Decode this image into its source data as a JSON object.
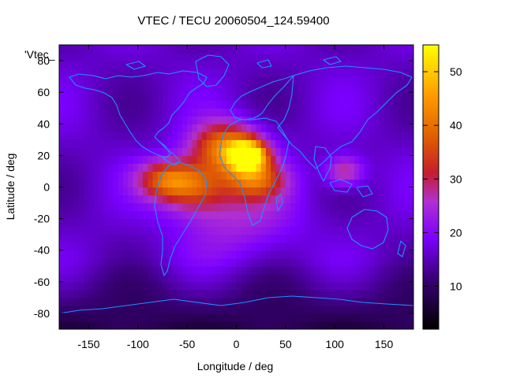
{
  "chart_data": {
    "type": "heatmap",
    "title": "VTEC / TECU 20060504_124.59400",
    "xlabel": "Longitude / deg",
    "ylabel": "Latitude / deg",
    "xlim": [
      -180,
      180
    ],
    "ylim": [
      -90,
      90
    ],
    "xticks": [
      -150,
      -100,
      -50,
      0,
      50,
      100,
      150
    ],
    "yticks": [
      -80,
      -60,
      -40,
      -20,
      0,
      20,
      40,
      60,
      80
    ],
    "colorbar": {
      "range": [
        2,
        55
      ],
      "ticks": [
        10,
        20,
        30,
        40,
        50
      ],
      "palette": "black-purple-red-orange-yellow"
    },
    "series_label": "'Vtec_",
    "grid": false,
    "overlay": "coastlines",
    "blobs": [
      {
        "lon": 12,
        "lat": 20,
        "value": 53,
        "slon": 18,
        "slat": 9
      },
      {
        "lon": -10,
        "lat": 25,
        "value": 42,
        "slon": 35,
        "slat": 16
      },
      {
        "lon": -70,
        "lat": 5,
        "value": 35,
        "slon": 30,
        "slat": 12
      },
      {
        "lon": -40,
        "lat": 0,
        "value": 33,
        "slon": 35,
        "slat": 16
      },
      {
        "lon": 20,
        "lat": 5,
        "value": 34,
        "slon": 30,
        "slat": 12
      },
      {
        "lon": 110,
        "lat": 10,
        "value": 30,
        "slon": 20,
        "slat": 10
      },
      {
        "lon": 0,
        "lat": -20,
        "value": 24,
        "slon": 60,
        "slat": 25
      }
    ]
  },
  "colors": {
    "coast": "#1e90ff",
    "axis": "#000000"
  }
}
